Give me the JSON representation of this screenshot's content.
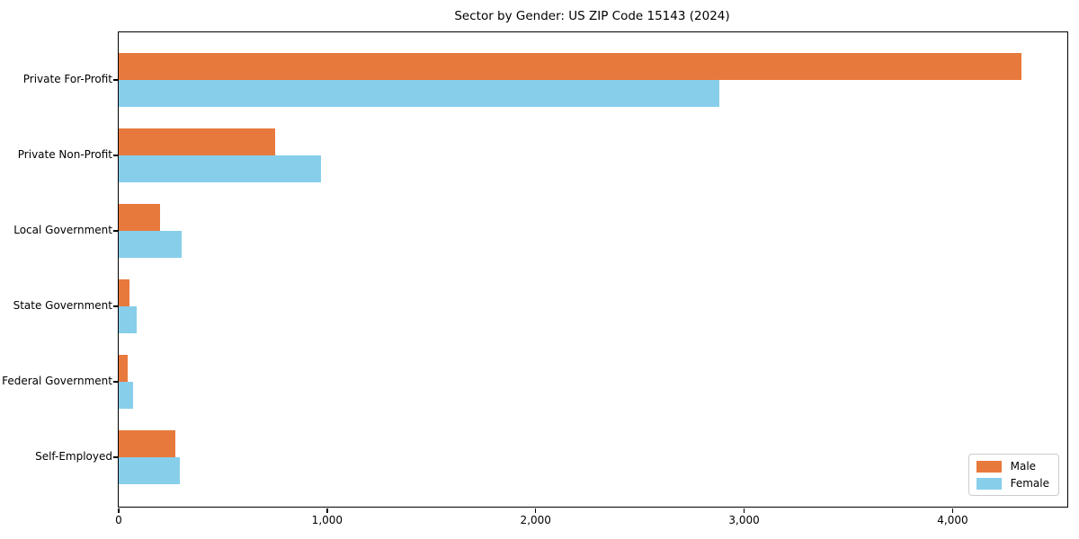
{
  "chart_data": {
    "type": "bar",
    "orientation": "horizontal",
    "title": "Sector by Gender: US ZIP Code 15143 (2024)",
    "categories": [
      "Private For-Profit",
      "Private Non-Profit",
      "Local Government",
      "State Government",
      "Federal Government",
      "Self-Employed"
    ],
    "series": [
      {
        "name": "Male",
        "color": "#e8793c",
        "values": [
          4330,
          750,
          200,
          50,
          45,
          270
        ]
      },
      {
        "name": "Female",
        "color": "#87ceeb",
        "values": [
          2880,
          970,
          300,
          85,
          70,
          295
        ]
      }
    ],
    "xlim": [
      0,
      4550
    ],
    "xticks": [
      0,
      1000,
      2000,
      3000,
      4000
    ],
    "xtick_labels": [
      "0",
      "1,000",
      "2,000",
      "3,000",
      "4,000"
    ],
    "xlabel": "",
    "ylabel": "",
    "grid": false,
    "legend": {
      "position": "lower right",
      "entries": [
        "Male",
        "Female"
      ]
    }
  }
}
